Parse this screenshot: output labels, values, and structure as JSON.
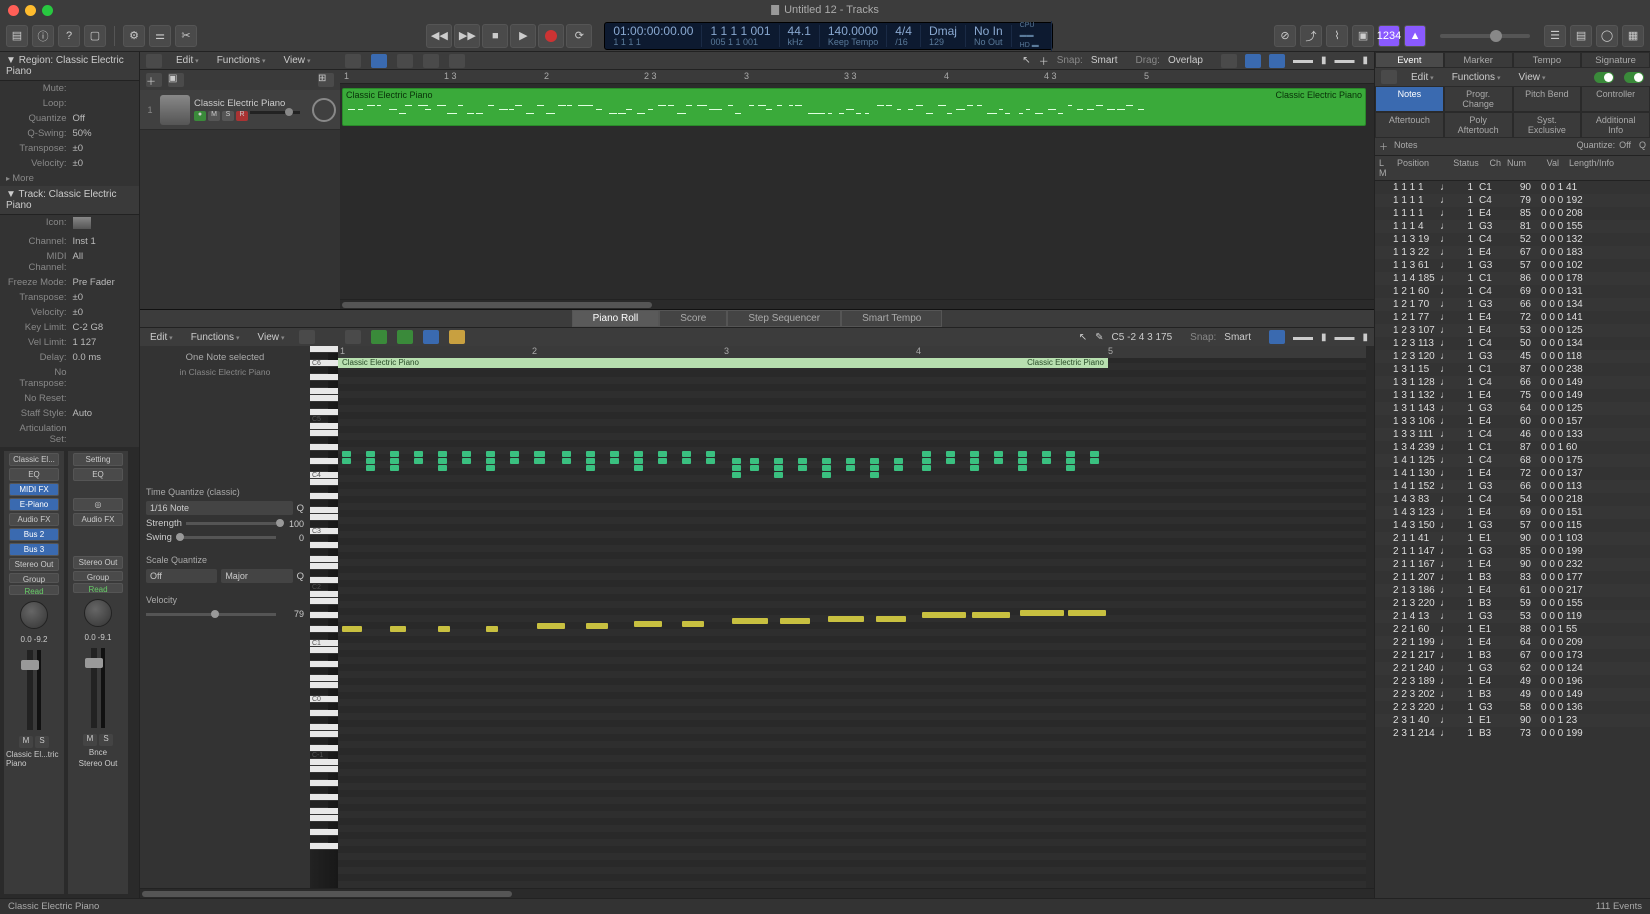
{
  "window": {
    "title": "Untitled 12 - Tracks"
  },
  "traffic": {
    "close": "#ff5f57",
    "min": "#febc2e",
    "max": "#28c840"
  },
  "lcd": {
    "timecode": "01:00:00:00.00",
    "bars": "1 1 1 1   001",
    "sub": "1 1 1    1",
    "sub2": "005 1 1   001",
    "rate": "44.1",
    "rate_unit": "kHz",
    "tempo": "140.0000",
    "tempo_mode": "Keep Tempo",
    "sig": "4/4",
    "sig_div": "/16",
    "key": "Dmaj",
    "key_num": "129",
    "io_in": "No In",
    "io_out": "No Out"
  },
  "toolbar": {
    "master_num": "1234"
  },
  "region_panel": {
    "header": "Region: Classic Electric Piano",
    "mute": "Mute:",
    "loop": "Loop:",
    "quantize_lab": "Quantize",
    "quantize_val": "Off",
    "qswing_lab": "Q-Swing:",
    "qswing_val": "50%",
    "transpose_lab": "Transpose:",
    "transpose_val": "±0",
    "velocity_lab": "Velocity:",
    "velocity_val": "±0",
    "more": "More"
  },
  "track_panel": {
    "header": "Track: Classic Electric Piano",
    "icon": "Icon:",
    "channel_lab": "Channel:",
    "channel_val": "Inst 1",
    "midich_lab": "MIDI Channel:",
    "midich_val": "All",
    "freeze_lab": "Freeze Mode:",
    "freeze_val": "Pre Fader",
    "transpose_lab": "Transpose:",
    "transpose_val": "±0",
    "velocity_lab": "Velocity:",
    "velocity_val": "±0",
    "keylim_lab": "Key Limit:",
    "keylim_val": "C-2 G8",
    "vellim_lab": "Vel Limit:",
    "vellim_val": "1  127",
    "delay_lab": "Delay:",
    "delay_val": "0.0 ms",
    "notrans": "No Transpose:",
    "noreset": "No Reset:",
    "staff_lab": "Staff Style:",
    "staff_val": "Auto",
    "artic": "Articulation Set:"
  },
  "strips": {
    "s1_name": "Classic El...",
    "s2_name": "Stereo Out",
    "setting": "Setting",
    "eq": "EQ",
    "midifx": "MIDI FX",
    "epiano": "E-Piano",
    "audiofx": "Audio FX",
    "bus1": "Bus 2",
    "bus2": "Bus 3",
    "stereoout": "Stereo Out",
    "group": "Group",
    "read": "Read",
    "db1a": "0.0",
    "db1b": "-9.2",
    "db2a": "0.0",
    "db2b": "-9.1",
    "bnce": "Bnce",
    "m": "M",
    "s": "S",
    "bottom1": "Classic El...tric Piano",
    "bottom2": "Stereo Out"
  },
  "track_header": {
    "edit": "Edit",
    "functions": "Functions",
    "view": "View",
    "snap_lab": "Snap:",
    "snap_val": "Smart",
    "drag_lab": "Drag:",
    "drag_val": "Overlap"
  },
  "track": {
    "name": "Classic Electric Piano",
    "region_name": "Classic Electric Piano",
    "region_name2": "Classic Electric Piano"
  },
  "ruler_marks": [
    "1",
    "1 3",
    "2",
    "2 3",
    "3",
    "3 3",
    "4",
    "4 3",
    "5"
  ],
  "editor_tabs": {
    "pr": "Piano Roll",
    "sc": "Score",
    "ss": "Step Sequencer",
    "st": "Smart Tempo"
  },
  "editor_header": {
    "edit": "Edit",
    "functions": "Functions",
    "view": "View",
    "pitch": "C5  -2 4 3 175",
    "snap_lab": "Snap:",
    "snap_val": "Smart"
  },
  "quantize": {
    "title": "Time Quantize (classic)",
    "div": "1/16 Note",
    "strength_lab": "Strength",
    "strength_val": "100",
    "swing_lab": "Swing",
    "swing_val": "0"
  },
  "scaleq": {
    "title": "Scale Quantize",
    "off": "Off",
    "major": "Major"
  },
  "velocity": {
    "title": "Velocity",
    "val": "79"
  },
  "selection": {
    "line1": "One Note selected",
    "line2": "in Classic Electric Piano"
  },
  "pr_region": "Classic Electric Piano",
  "pr_region2": "Classic Electric Piano",
  "pr_ruler": [
    "1",
    "2",
    "3",
    "4",
    "5"
  ],
  "piano_labels": [
    "C6",
    "C5",
    "C4",
    "C3",
    "C2",
    "C1",
    "C0",
    "C-1"
  ],
  "right": {
    "tabs": {
      "event": "Event",
      "marker": "Marker",
      "tempo": "Tempo",
      "signature": "Signature"
    },
    "menus": {
      "edit": "Edit",
      "functions": "Functions",
      "view": "View"
    },
    "subtabs": {
      "notes": "Notes",
      "prog": "Progr. Change",
      "pitch": "Pitch Bend",
      "ctrl": "Controller",
      "after": "Aftertouch",
      "poly": "Poly Aftertouch",
      "syst": "Syst. Exclusive",
      "add": "Additional Info"
    },
    "list_header": {
      "notes": "Notes",
      "quantize": "Quantize:",
      "qval": "Off"
    },
    "cols": {
      "lm": "L  M",
      "pos": "Position",
      "status": "Status",
      "ch": "Ch",
      "num": "Num",
      "val": "Val",
      "li": "Length/Info"
    }
  },
  "events": [
    {
      "pos": "1 1 1    1",
      "st": "♩",
      "ch": "1",
      "num": "C1",
      "val": "90",
      "li": "0 0 1  41"
    },
    {
      "pos": "1 1 1    1",
      "st": "♩",
      "ch": "1",
      "num": "C4",
      "val": "79",
      "li": "0 0 0 192"
    },
    {
      "pos": "1 1 1    1",
      "st": "♩",
      "ch": "1",
      "num": "E4",
      "val": "85",
      "li": "0 0 0 208"
    },
    {
      "pos": "1 1 1    4",
      "st": "♩",
      "ch": "1",
      "num": "G3",
      "val": "81",
      "li": "0 0 0 155"
    },
    {
      "pos": "1 1 3   19",
      "st": "♩",
      "ch": "1",
      "num": "C4",
      "val": "52",
      "li": "0 0 0 132"
    },
    {
      "pos": "1 1 3   22",
      "st": "♩",
      "ch": "1",
      "num": "E4",
      "val": "67",
      "li": "0 0 0 183"
    },
    {
      "pos": "1 1 3   61",
      "st": "♩",
      "ch": "1",
      "num": "G3",
      "val": "57",
      "li": "0 0 0 102"
    },
    {
      "pos": "1 1 4  185",
      "st": "♩",
      "ch": "1",
      "num": "C1",
      "val": "86",
      "li": "0 0 0 178"
    },
    {
      "pos": "1 2 1   60",
      "st": "♩",
      "ch": "1",
      "num": "C4",
      "val": "69",
      "li": "0 0 0 131"
    },
    {
      "pos": "1 2 1   70",
      "st": "♩",
      "ch": "1",
      "num": "G3",
      "val": "66",
      "li": "0 0 0 134"
    },
    {
      "pos": "1 2 1   77",
      "st": "♩",
      "ch": "1",
      "num": "E4",
      "val": "72",
      "li": "0 0 0 141"
    },
    {
      "pos": "1 2 3  107",
      "st": "♩",
      "ch": "1",
      "num": "E4",
      "val": "53",
      "li": "0 0 0 125"
    },
    {
      "pos": "1 2 3  113",
      "st": "♩",
      "ch": "1",
      "num": "C4",
      "val": "50",
      "li": "0 0 0 134"
    },
    {
      "pos": "1 2 3  120",
      "st": "♩",
      "ch": "1",
      "num": "G3",
      "val": "45",
      "li": "0 0 0 118"
    },
    {
      "pos": "1 3 1   15",
      "st": "♩",
      "ch": "1",
      "num": "C1",
      "val": "87",
      "li": "0 0 0 238"
    },
    {
      "pos": "1 3 1  128",
      "st": "♩",
      "ch": "1",
      "num": "C4",
      "val": "66",
      "li": "0 0 0 149"
    },
    {
      "pos": "1 3 1  132",
      "st": "♩",
      "ch": "1",
      "num": "E4",
      "val": "75",
      "li": "0 0 0 149"
    },
    {
      "pos": "1 3 1  143",
      "st": "♩",
      "ch": "1",
      "num": "G3",
      "val": "64",
      "li": "0 0 0 125"
    },
    {
      "pos": "1 3 3  106",
      "st": "♩",
      "ch": "1",
      "num": "E4",
      "val": "60",
      "li": "0 0 0 157"
    },
    {
      "pos": "1 3 3  111",
      "st": "♩",
      "ch": "1",
      "num": "C4",
      "val": "46",
      "li": "0 0 0 133"
    },
    {
      "pos": "1 3 4  239",
      "st": "♩",
      "ch": "1",
      "num": "C1",
      "val": "87",
      "li": "0 0 1  60"
    },
    {
      "pos": "1 4 1  125",
      "st": "♩",
      "ch": "1",
      "num": "C4",
      "val": "68",
      "li": "0 0 0 175"
    },
    {
      "pos": "1 4 1  130",
      "st": "♩",
      "ch": "1",
      "num": "E4",
      "val": "72",
      "li": "0 0 0 137"
    },
    {
      "pos": "1 4 1  152",
      "st": "♩",
      "ch": "1",
      "num": "G3",
      "val": "66",
      "li": "0 0 0 113"
    },
    {
      "pos": "1 4 3   83",
      "st": "♩",
      "ch": "1",
      "num": "C4",
      "val": "54",
      "li": "0 0 0 218"
    },
    {
      "pos": "1 4 3  123",
      "st": "♩",
      "ch": "1",
      "num": "E4",
      "val": "69",
      "li": "0 0 0 151"
    },
    {
      "pos": "1 4 3  150",
      "st": "♩",
      "ch": "1",
      "num": "G3",
      "val": "57",
      "li": "0 0 0 115"
    },
    {
      "pos": "2 1 1   41",
      "st": "♩",
      "ch": "1",
      "num": "E1",
      "val": "90",
      "li": "0 0 1 103"
    },
    {
      "pos": "2 1 1  147",
      "st": "♩",
      "ch": "1",
      "num": "G3",
      "val": "85",
      "li": "0 0 0 199"
    },
    {
      "pos": "2 1 1  167",
      "st": "♩",
      "ch": "1",
      "num": "E4",
      "val": "90",
      "li": "0 0 0 232"
    },
    {
      "pos": "2 1 1  207",
      "st": "♩",
      "ch": "1",
      "num": "B3",
      "val": "83",
      "li": "0 0 0 177"
    },
    {
      "pos": "2 1 3  186",
      "st": "♩",
      "ch": "1",
      "num": "E4",
      "val": "61",
      "li": "0 0 0 217"
    },
    {
      "pos": "2 1 3  220",
      "st": "♩",
      "ch": "1",
      "num": "B3",
      "val": "59",
      "li": "0 0 0 155"
    },
    {
      "pos": "2 1 4   13",
      "st": "♩",
      "ch": "1",
      "num": "G3",
      "val": "53",
      "li": "0 0 0 119"
    },
    {
      "pos": "2 2 1   60",
      "st": "♩",
      "ch": "1",
      "num": "E1",
      "val": "88",
      "li": "0 0 1  55"
    },
    {
      "pos": "2 2 1  199",
      "st": "♩",
      "ch": "1",
      "num": "E4",
      "val": "64",
      "li": "0 0 0 209"
    },
    {
      "pos": "2 2 1  217",
      "st": "♩",
      "ch": "1",
      "num": "B3",
      "val": "67",
      "li": "0 0 0 173"
    },
    {
      "pos": "2 2 1  240",
      "st": "♩",
      "ch": "1",
      "num": "G3",
      "val": "62",
      "li": "0 0 0 124"
    },
    {
      "pos": "2 2 3  189",
      "st": "♩",
      "ch": "1",
      "num": "E4",
      "val": "49",
      "li": "0 0 0 196"
    },
    {
      "pos": "2 2 3  202",
      "st": "♩",
      "ch": "1",
      "num": "B3",
      "val": "49",
      "li": "0 0 0 149"
    },
    {
      "pos": "2 2 3  220",
      "st": "♩",
      "ch": "1",
      "num": "G3",
      "val": "58",
      "li": "0 0 0 136"
    },
    {
      "pos": "2 3 1   40",
      "st": "♩",
      "ch": "1",
      "num": "E1",
      "val": "90",
      "li": "0 0 1  23"
    },
    {
      "pos": "2 3 1  214",
      "st": "♩",
      "ch": "1",
      "num": "B3",
      "val": "73",
      "li": "0 0 0 199"
    }
  ],
  "status": {
    "left": "Classic Electric Piano",
    "right": "111 Events"
  },
  "notes_upper": [
    [
      0,
      0,
      9
    ],
    [
      0,
      7,
      9
    ],
    [
      24,
      0,
      9
    ],
    [
      24,
      7,
      9
    ],
    [
      24,
      14,
      9
    ],
    [
      48,
      0,
      9
    ],
    [
      48,
      7,
      9
    ],
    [
      48,
      14,
      9
    ],
    [
      72,
      0,
      9
    ],
    [
      72,
      7,
      9
    ],
    [
      96,
      0,
      9
    ],
    [
      96,
      7,
      9
    ],
    [
      96,
      14,
      9
    ],
    [
      120,
      0,
      9
    ],
    [
      120,
      7,
      9
    ],
    [
      144,
      0,
      9
    ],
    [
      144,
      7,
      9
    ],
    [
      144,
      14,
      9
    ],
    [
      168,
      0,
      9
    ],
    [
      168,
      7,
      9
    ],
    [
      192,
      0,
      11
    ],
    [
      192,
      7,
      11
    ],
    [
      220,
      0,
      9
    ],
    [
      220,
      7,
      9
    ],
    [
      244,
      0,
      9
    ],
    [
      244,
      7,
      9
    ],
    [
      244,
      14,
      9
    ],
    [
      268,
      0,
      9
    ],
    [
      268,
      7,
      9
    ],
    [
      292,
      0,
      9
    ],
    [
      292,
      7,
      9
    ],
    [
      292,
      14,
      9
    ],
    [
      316,
      0,
      9
    ],
    [
      316,
      7,
      9
    ],
    [
      340,
      0,
      9
    ],
    [
      340,
      7,
      9
    ],
    [
      364,
      0,
      9
    ],
    [
      364,
      7,
      9
    ],
    [
      390,
      7,
      9
    ],
    [
      390,
      14,
      9
    ],
    [
      390,
      21,
      9
    ],
    [
      408,
      7,
      9
    ],
    [
      408,
      14,
      9
    ],
    [
      432,
      7,
      9
    ],
    [
      432,
      14,
      9
    ],
    [
      432,
      21,
      9
    ],
    [
      456,
      7,
      9
    ],
    [
      456,
      14,
      9
    ],
    [
      480,
      7,
      9
    ],
    [
      480,
      14,
      9
    ],
    [
      480,
      21,
      9
    ],
    [
      504,
      7,
      9
    ],
    [
      504,
      14,
      9
    ],
    [
      528,
      7,
      9
    ],
    [
      528,
      14,
      9
    ],
    [
      528,
      21,
      9
    ],
    [
      552,
      7,
      9
    ],
    [
      552,
      14,
      9
    ],
    [
      580,
      0,
      9
    ],
    [
      580,
      7,
      9
    ],
    [
      580,
      14,
      9
    ],
    [
      604,
      0,
      9
    ],
    [
      604,
      7,
      9
    ],
    [
      628,
      0,
      9
    ],
    [
      628,
      7,
      9
    ],
    [
      628,
      14,
      9
    ],
    [
      652,
      0,
      9
    ],
    [
      652,
      7,
      9
    ],
    [
      676,
      0,
      9
    ],
    [
      676,
      7,
      9
    ],
    [
      676,
      14,
      9
    ],
    [
      700,
      0,
      9
    ],
    [
      700,
      7,
      9
    ],
    [
      724,
      0,
      9
    ],
    [
      724,
      7,
      9
    ],
    [
      724,
      14,
      9
    ],
    [
      748,
      0,
      9
    ],
    [
      748,
      7,
      9
    ]
  ],
  "notes_bass": [
    [
      0,
      0,
      20
    ],
    [
      48,
      0,
      16
    ],
    [
      96,
      0,
      12
    ],
    [
      144,
      0,
      12
    ],
    [
      195,
      -3,
      28
    ],
    [
      244,
      -3,
      22
    ],
    [
      292,
      -5,
      28
    ],
    [
      340,
      -5,
      22
    ],
    [
      390,
      -8,
      36
    ],
    [
      438,
      -8,
      30
    ],
    [
      486,
      -10,
      36
    ],
    [
      534,
      -10,
      30
    ],
    [
      580,
      -14,
      44
    ],
    [
      630,
      -14,
      38
    ],
    [
      678,
      -16,
      44
    ],
    [
      726,
      -16,
      38
    ]
  ]
}
